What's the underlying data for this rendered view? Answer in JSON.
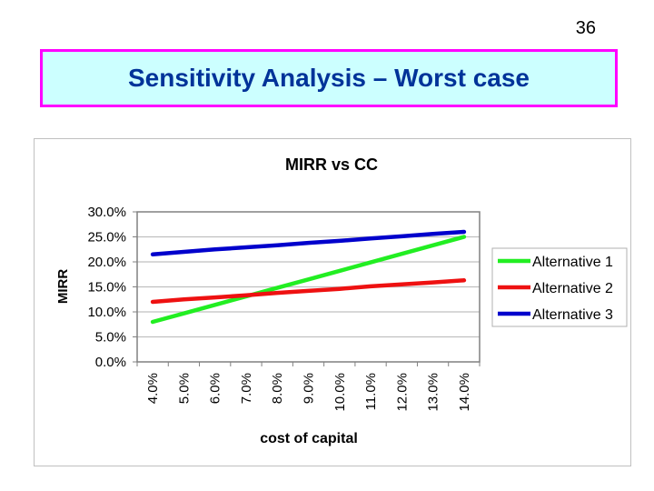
{
  "slide": {
    "page_number": "36",
    "title": "Sensitivity Analysis – Worst case",
    "colors": {
      "title_text": "#003399",
      "title_bg": "#ccffff",
      "title_border": "#ff00ff"
    }
  },
  "chart_data": {
    "type": "line",
    "title": "MIRR vs CC",
    "xlabel": "cost of capital",
    "ylabel": "MIRR",
    "categories": [
      "4.0%",
      "5.0%",
      "6.0%",
      "7.0%",
      "8.0%",
      "9.0%",
      "10.0%",
      "11.0%",
      "12.0%",
      "13.0%",
      "14.0%"
    ],
    "x": [
      4,
      5,
      6,
      7,
      8,
      9,
      10,
      11,
      12,
      13,
      14
    ],
    "yticks": [
      "0.0%",
      "5.0%",
      "10.0%",
      "15.0%",
      "20.0%",
      "25.0%",
      "30.0%"
    ],
    "ylim": [
      0,
      30
    ],
    "grid": true,
    "legend_position": "right",
    "series": [
      {
        "name": "Alternative 1",
        "color": "#22ee22",
        "values": [
          8.0,
          9.7,
          11.4,
          13.1,
          14.8,
          16.5,
          18.2,
          19.9,
          21.6,
          23.3,
          25.0
        ]
      },
      {
        "name": "Alternative 2",
        "color": "#ee1111",
        "values": [
          12.0,
          12.5,
          12.9,
          13.3,
          13.8,
          14.2,
          14.6,
          15.1,
          15.5,
          15.9,
          16.3
        ]
      },
      {
        "name": "Alternative 3",
        "color": "#0000cc",
        "values": [
          21.5,
          22.0,
          22.5,
          22.9,
          23.3,
          23.8,
          24.2,
          24.7,
          25.1,
          25.6,
          26.0
        ]
      }
    ]
  }
}
